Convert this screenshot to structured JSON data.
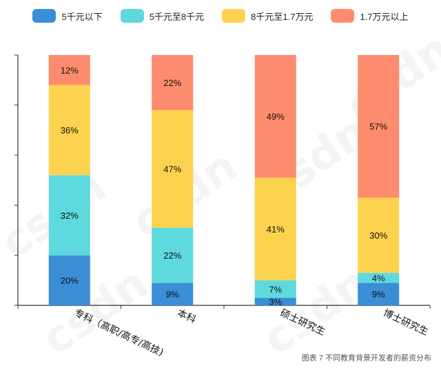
{
  "chart_data": {
    "type": "bar",
    "stacked": true,
    "categories": [
      "专科（高职/高专/高技)",
      "本科",
      "硕士研究生",
      "博士研究生"
    ],
    "series": [
      {
        "name": "5千元以下",
        "color": "#3a8ed6",
        "values": [
          20,
          9,
          3,
          9
        ]
      },
      {
        "name": "5千元至8千元",
        "color": "#5ed9de",
        "values": [
          32,
          22,
          7,
          4
        ]
      },
      {
        "name": "8千元至1.7万元",
        "color": "#fdd24e",
        "values": [
          36,
          47,
          41,
          30
        ]
      },
      {
        "name": "1.7万元以上",
        "color": "#fd8c6e",
        "values": [
          12,
          22,
          49,
          57
        ]
      }
    ],
    "value_suffix": "%",
    "ylim": [
      0,
      100
    ],
    "legend_position": "top",
    "grid": false
  },
  "caption": "图表 7  不同教育背景开发者的薪资分布",
  "watermark": "csdn"
}
